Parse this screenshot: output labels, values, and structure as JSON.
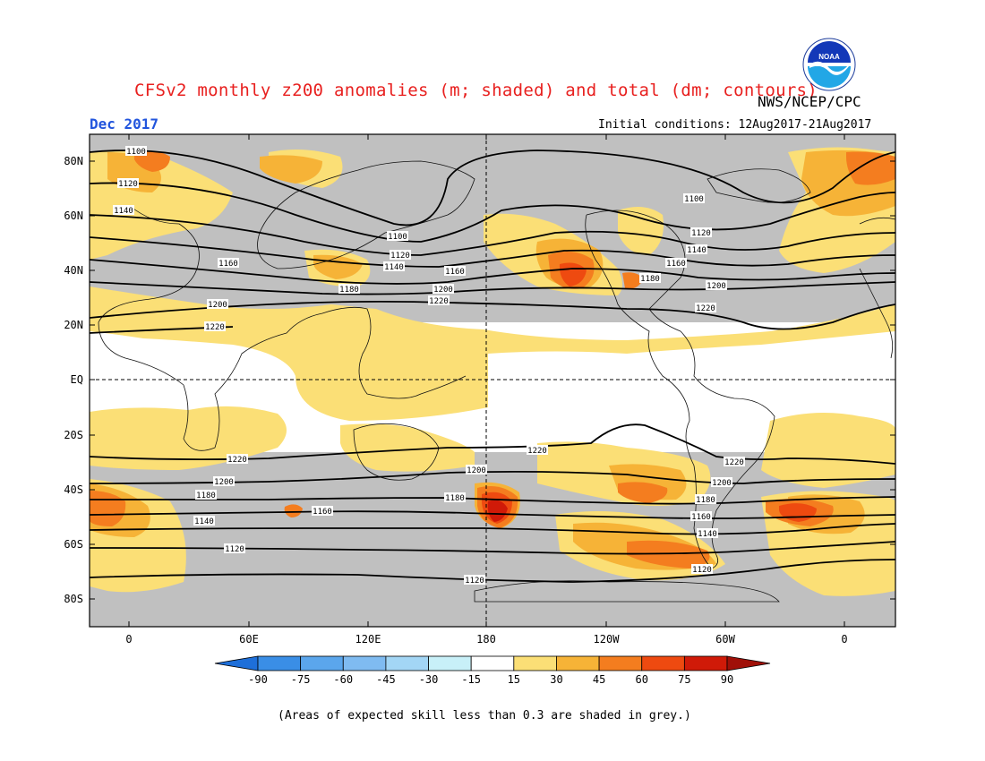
{
  "header": {
    "title": "CFSv2 monthly z200 anomalies (m; shaded) and total (dm; contours)",
    "org": "NWS/NCEP/CPC",
    "month": "Dec 2017",
    "initial_conditions": "Initial conditions: 12Aug2017-21Aug2017",
    "logo_text": "NOAA"
  },
  "footnote": "(Areas of expected skill less than 0.3 are shaded in grey.)",
  "axes": {
    "lat_labels": [
      "80N",
      "60N",
      "40N",
      "20N",
      "EQ",
      "20S",
      "40S",
      "60S",
      "80S"
    ],
    "lon_labels": [
      "0",
      "60E",
      "120E",
      "180",
      "120W",
      "60W",
      "0"
    ]
  },
  "colorbar": {
    "ticks": [
      "-90",
      "-75",
      "-60",
      "-45",
      "-30",
      "-15",
      "15",
      "30",
      "45",
      "60",
      "75",
      "90"
    ],
    "colors": [
      "#1e6fd9",
      "#3a8ee6",
      "#5ba6ec",
      "#7fbbf1",
      "#a3d6f5",
      "#c8f0f8",
      "#ffffff",
      "#fbdf76",
      "#f6b337",
      "#f47d1f",
      "#ee4a10",
      "#d01a08",
      "#a01008"
    ]
  },
  "colors": {
    "grey_skill": "#c0c0c0",
    "anom_30": "#fbdf76",
    "anom_45": "#f6b337",
    "anom_60": "#f47d1f",
    "anom_75": "#ee4a10",
    "anom_90": "#d01a08",
    "anom_max": "#a01008"
  },
  "contours": {
    "levels_dm": [
      1100,
      1120,
      1140,
      1160,
      1180,
      1200,
      1220
    ],
    "labels": [
      "1100",
      "1120",
      "1140",
      "1160",
      "1180",
      "1200",
      "1220",
      "1100",
      "1120",
      "1140",
      "1160",
      "1180",
      "1200",
      "1220",
      "1100",
      "1120",
      "1140",
      "1160",
      "1180",
      "1200",
      "1220",
      "1220",
      "1200",
      "1180",
      "1160",
      "1140",
      "1120",
      "1120",
      "1220",
      "1200",
      "1180",
      "1160",
      "1140",
      "1120"
    ]
  }
}
